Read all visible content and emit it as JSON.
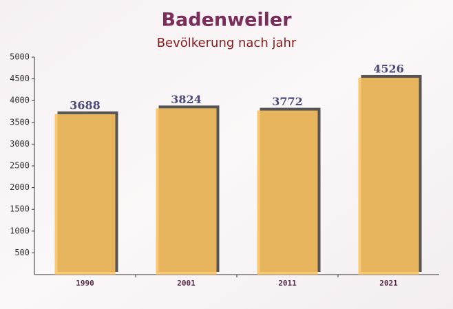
{
  "chart_data": {
    "type": "bar",
    "title": "Badenweiler",
    "subtitle": "Bevölkerung nach jahr",
    "categories": [
      "1990",
      "2001",
      "2011",
      "2021"
    ],
    "values": [
      3688,
      3824,
      3772,
      4526
    ],
    "color": "#fbc15e",
    "ylim": [
      0,
      5000
    ],
    "yticks": [
      500,
      1000,
      1500,
      2000,
      2500,
      3000,
      3500,
      4000,
      4500,
      5000
    ]
  }
}
